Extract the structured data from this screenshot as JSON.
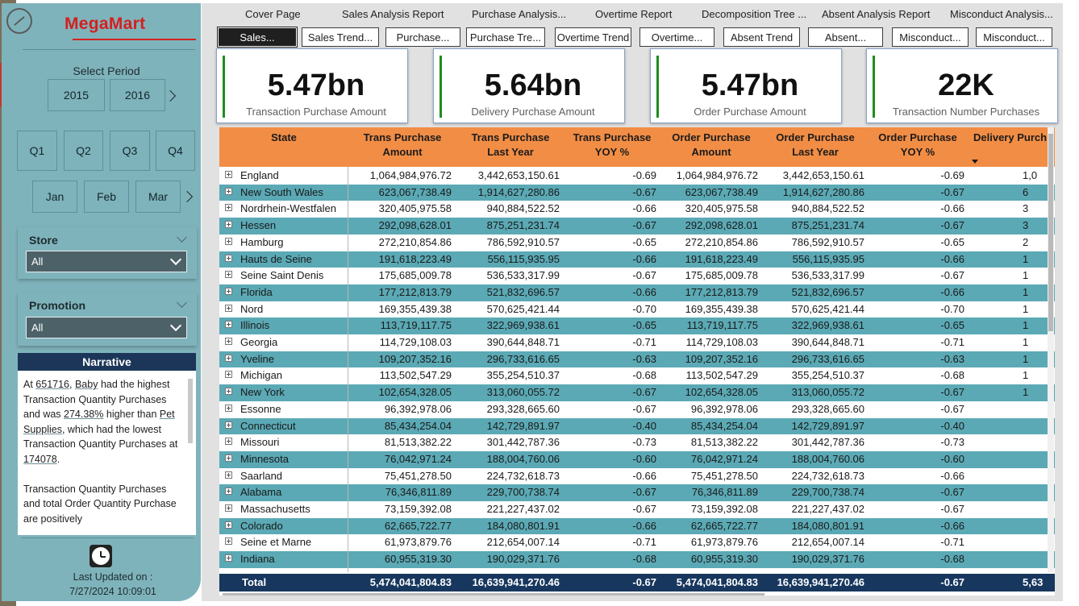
{
  "brand": "MegaMart",
  "select_period_label": "Select Period",
  "years": [
    "2015",
    "2016"
  ],
  "quarters": [
    "Q1",
    "Q2",
    "Q3",
    "Q4"
  ],
  "months": [
    "Jan",
    "Feb",
    "Mar"
  ],
  "store": {
    "title": "Store",
    "value": "All"
  },
  "promotion": {
    "title": "Promotion",
    "value": "All"
  },
  "narrative": {
    "title": "Narrative",
    "p1": {
      "t1": "At ",
      "v1": "651716",
      "t2": ", ",
      "v2": "Baby",
      "t3": " had the highest Transaction Quantity Purchases and was ",
      "v3": "274.38%",
      "t4": " higher than ",
      "v4": "Pet Supplies",
      "t5": ", which had the lowest Transaction Quantity Purchases at ",
      "v5": "174078",
      "t6": "."
    },
    "p2": "Transaction Quantity Purchases and total Order Quantity Purchase are positively"
  },
  "last_updated_label": "Last Updated on :",
  "last_updated_value": "7/27/2024 10:09:01",
  "nav_top": [
    "Cover Page",
    "Sales Analysis Report",
    "Purchase Analysis...",
    "Overtime Report",
    "Decomposition Tree ...",
    "Absent Analysis Report",
    "Misconduct Analysis..."
  ],
  "nav_sub": [
    "Sales...",
    "Sales Trend...",
    "Purchase...",
    "Purchase Tre...",
    "Overtime Trend",
    "Overtime...",
    "Absent Trend",
    "Absent...",
    "Misconduct...",
    "Misconduct..."
  ],
  "cards": [
    {
      "value": "5.47bn",
      "label": "Transaction Purchase Amount"
    },
    {
      "value": "5.64bn",
      "label": "Delivery Purchase Amount"
    },
    {
      "value": "5.47bn",
      "label": "Order Purchase Amount"
    },
    {
      "value": "22K",
      "label": "Transaction Number Purchases"
    }
  ],
  "table": {
    "headers": [
      [
        "State"
      ],
      [
        "Trans Purchase",
        "Amount"
      ],
      [
        "Trans Purchase",
        "Last Year"
      ],
      [
        "Trans Purchase",
        "YOY %"
      ],
      [
        "Order Purchase",
        "Amount"
      ],
      [
        "Order Purchase",
        "Last Year"
      ],
      [
        "Order Purchase",
        "YOY %"
      ],
      [
        "Delivery Purch"
      ]
    ],
    "rows": [
      [
        "England",
        "1,064,984,976.72",
        "3,442,653,150.61",
        "-0.69",
        "1,064,984,976.72",
        "3,442,653,150.61",
        "-0.69",
        "1,0"
      ],
      [
        "New South Wales",
        "623,067,738.49",
        "1,914,627,280.86",
        "-0.67",
        "623,067,738.49",
        "1,914,627,280.86",
        "-0.67",
        "6"
      ],
      [
        "Nordrhein-Westfalen",
        "320,405,975.58",
        "940,884,522.52",
        "-0.66",
        "320,405,975.58",
        "940,884,522.52",
        "-0.66",
        "3"
      ],
      [
        "Hessen",
        "292,098,628.01",
        "875,251,231.74",
        "-0.67",
        "292,098,628.01",
        "875,251,231.74",
        "-0.67",
        "3"
      ],
      [
        "Hamburg",
        "272,210,854.86",
        "786,592,910.57",
        "-0.65",
        "272,210,854.86",
        "786,592,910.57",
        "-0.65",
        "2"
      ],
      [
        "Hauts de Seine",
        "191,618,223.49",
        "556,115,935.95",
        "-0.66",
        "191,618,223.49",
        "556,115,935.95",
        "-0.66",
        "1"
      ],
      [
        "Seine Saint Denis",
        "175,685,009.78",
        "536,533,317.99",
        "-0.67",
        "175,685,009.78",
        "536,533,317.99",
        "-0.67",
        "1"
      ],
      [
        "Florida",
        "177,212,813.79",
        "521,832,696.57",
        "-0.66",
        "177,212,813.79",
        "521,832,696.57",
        "-0.66",
        "1"
      ],
      [
        "Nord",
        "169,355,439.38",
        "570,625,421.44",
        "-0.70",
        "169,355,439.38",
        "570,625,421.44",
        "-0.70",
        "1"
      ],
      [
        "Illinois",
        "113,719,117.75",
        "322,969,938.61",
        "-0.65",
        "113,719,117.75",
        "322,969,938.61",
        "-0.65",
        "1"
      ],
      [
        "Georgia",
        "114,729,108.03",
        "390,644,848.71",
        "-0.71",
        "114,729,108.03",
        "390,644,848.71",
        "-0.71",
        "1"
      ],
      [
        "Yveline",
        "109,207,352.16",
        "296,733,616.65",
        "-0.63",
        "109,207,352.16",
        "296,733,616.65",
        "-0.63",
        "1"
      ],
      [
        "Michigan",
        "113,502,547.29",
        "355,254,510.37",
        "-0.68",
        "113,502,547.29",
        "355,254,510.37",
        "-0.68",
        "1"
      ],
      [
        "New York",
        "102,654,328.05",
        "313,060,055.72",
        "-0.67",
        "102,654,328.05",
        "313,060,055.72",
        "-0.67",
        "1"
      ],
      [
        "Essonne",
        "96,392,978.06",
        "293,328,665.60",
        "-0.67",
        "96,392,978.06",
        "293,328,665.60",
        "-0.67",
        ""
      ],
      [
        "Connecticut",
        "85,434,254.04",
        "142,729,891.97",
        "-0.40",
        "85,434,254.04",
        "142,729,891.97",
        "-0.40",
        ""
      ],
      [
        "Missouri",
        "81,513,382.22",
        "301,442,787.36",
        "-0.73",
        "81,513,382.22",
        "301,442,787.36",
        "-0.73",
        ""
      ],
      [
        "Minnesota",
        "76,042,971.24",
        "188,004,760.06",
        "-0.60",
        "76,042,971.24",
        "188,004,760.06",
        "-0.60",
        ""
      ],
      [
        "Saarland",
        "75,451,278.50",
        "224,732,618.73",
        "-0.66",
        "75,451,278.50",
        "224,732,618.73",
        "-0.66",
        ""
      ],
      [
        "Alabama",
        "76,346,811.89",
        "229,700,738.74",
        "-0.67",
        "76,346,811.89",
        "229,700,738.74",
        "-0.67",
        ""
      ],
      [
        "Massachusetts",
        "73,159,392.08",
        "221,227,437.02",
        "-0.67",
        "73,159,392.08",
        "221,227,437.02",
        "-0.67",
        ""
      ],
      [
        "Colorado",
        "62,665,722.77",
        "184,080,801.91",
        "-0.66",
        "62,665,722.77",
        "184,080,801.91",
        "-0.66",
        ""
      ],
      [
        "Seine et Marne",
        "61,973,879.76",
        "212,654,007.14",
        "-0.71",
        "61,973,879.76",
        "212,654,007.14",
        "-0.71",
        ""
      ],
      [
        "Indiana",
        "60,955,319.30",
        "190,029,371.76",
        "-0.68",
        "60,955,319.30",
        "190,029,371.76",
        "-0.68",
        ""
      ]
    ],
    "total": [
      "Total",
      "5,474,041,804.83",
      "16,639,941,270.46",
      "-0.67",
      "5,474,041,804.83",
      "16,639,941,270.46",
      "-0.67",
      "5,63"
    ]
  },
  "colors": {
    "sidebar": "#7fb3bb",
    "header": "#f28d45",
    "alt_row": "#5ba9b5",
    "total": "#17375e",
    "card_accent": "#1e8c1e",
    "brand": "#d42020"
  }
}
